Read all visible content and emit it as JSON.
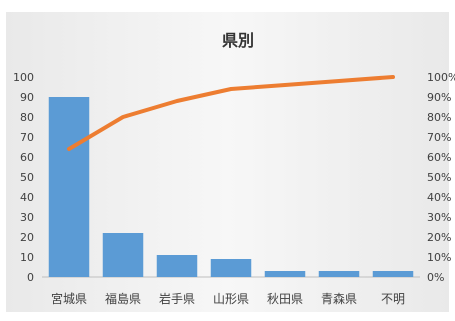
{
  "chart_data": {
    "type": "bar",
    "title": "県別",
    "categories": [
      "宮城県",
      "福島県",
      "岩手県",
      "山形県",
      "秋田県",
      "青森県",
      "不明"
    ],
    "values": [
      90,
      22,
      11,
      9,
      3,
      3,
      3
    ],
    "cumulative_percent": [
      64,
      80,
      88,
      94,
      96,
      98,
      100
    ],
    "ylim": [
      0,
      100
    ],
    "yticks": [
      0,
      10,
      20,
      30,
      40,
      50,
      60,
      70,
      80,
      90,
      100
    ],
    "y2lim": [
      0,
      100
    ],
    "y2ticks": [
      "0%",
      "10%",
      "20%",
      "30%",
      "40%",
      "50%",
      "60%",
      "70%",
      "80%",
      "90%",
      "100%"
    ],
    "xlabel": "",
    "ylabel": "",
    "grid": false,
    "legend": "none"
  },
  "colors": {
    "bar": "#5b9bd5",
    "line": "#ed7d31",
    "plot_background": "#f2f2f2",
    "text": "#404040"
  }
}
